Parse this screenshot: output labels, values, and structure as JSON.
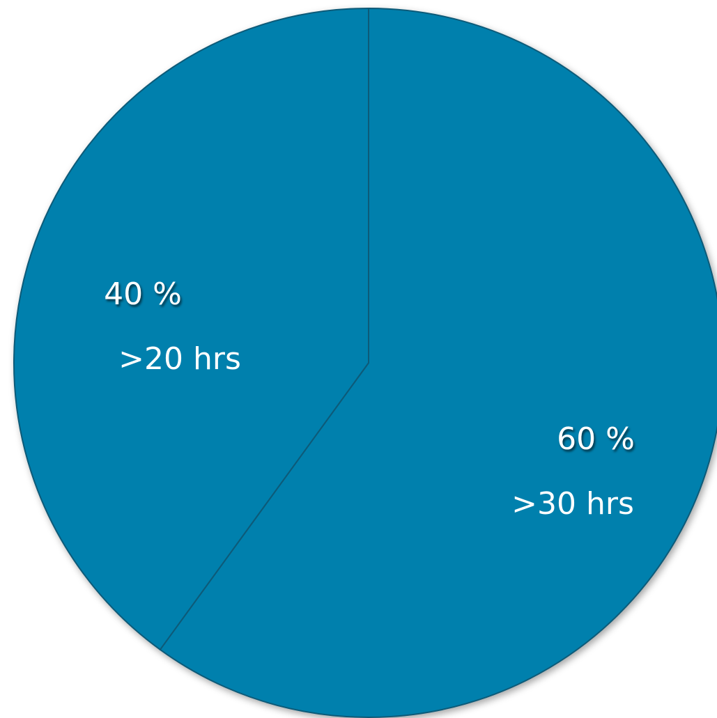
{
  "chart_data": {
    "type": "pie",
    "slices": [
      {
        "value": 60,
        "percent_label": "60 %",
        "category_label": ">30 hrs",
        "color": "#0580ad"
      },
      {
        "value": 40,
        "percent_label": "40 %",
        "category_label": ">20 hrs",
        "color": "#0580ad"
      }
    ],
    "start_angle_deg": 0,
    "direction": "clockwise",
    "legend": "none",
    "edge_color": "#0a5a78"
  }
}
